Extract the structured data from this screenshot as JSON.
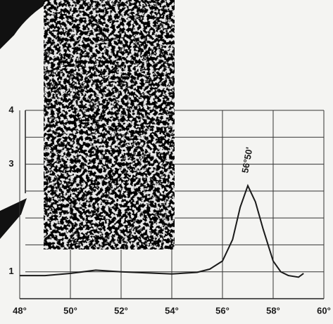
{
  "chart_data": {
    "type": "line",
    "annotation": "56°50'",
    "x": [
      48,
      49,
      50,
      51,
      52,
      53,
      54,
      55,
      55.5,
      56,
      56.4,
      56.7,
      57,
      57.3,
      57.6,
      58,
      58.3,
      58.6,
      59,
      59.2
    ],
    "series": [
      {
        "color": "#1a1a1a",
        "values": [
          0.93,
          0.93,
          0.97,
          1.03,
          1.0,
          0.98,
          0.96,
          0.99,
          1.05,
          1.2,
          1.6,
          2.2,
          2.6,
          2.3,
          1.8,
          1.2,
          1.0,
          0.93,
          0.9,
          0.97
        ]
      }
    ],
    "xlim": [
      48,
      60
    ],
    "xticks": [
      {
        "value": 48,
        "label": "48°"
      },
      {
        "value": 50,
        "label": "50°"
      },
      {
        "value": 52,
        "label": "52°"
      },
      {
        "value": 54,
        "label": "54°"
      },
      {
        "value": 56,
        "label": "56°"
      },
      {
        "value": 58,
        "label": "58°"
      },
      {
        "value": 60,
        "label": "60°"
      }
    ],
    "ylim": [
      0.5,
      4
    ],
    "yticks": [
      1,
      3,
      4
    ],
    "minor_yticks": [
      1.5,
      2,
      2.5,
      3.5
    ],
    "grid": true
  }
}
